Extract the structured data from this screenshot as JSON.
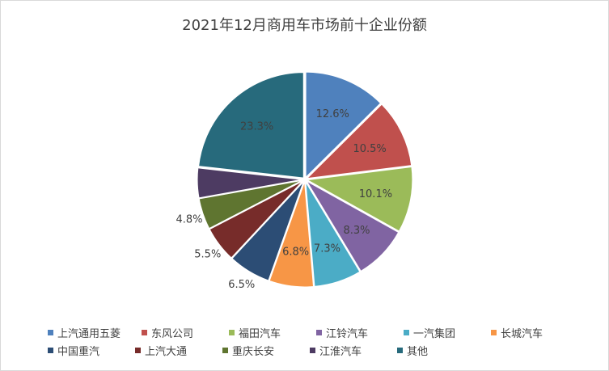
{
  "chart_data": {
    "type": "pie",
    "title": "2021年12月商用车市场前十企业份额",
    "categories": [
      "上汽通用五菱",
      "东风公司",
      "福田汽车",
      "江铃汽车",
      "一汽集团",
      "长城汽车",
      "中国重汽",
      "上汽大通",
      "重庆长安",
      "江淮汽车",
      "其他"
    ],
    "values": [
      12.6,
      10.5,
      10.1,
      8.3,
      7.3,
      6.8,
      6.5,
      5.5,
      4.8,
      4.6,
      23.3
    ],
    "labels": [
      "12.6%",
      "10.5%",
      "10.1%",
      "8.3%",
      "7.3%",
      "6.8%",
      "6.5%",
      "5.5%",
      "4.8%",
      "",
      "23.3%"
    ],
    "colors": [
      "#4f81bd",
      "#c0504d",
      "#9bbb59",
      "#8064a2",
      "#4bacc6",
      "#f79646",
      "#2c4d75",
      "#772c2a",
      "#5f7530",
      "#4d3b62",
      "#276a7c"
    ],
    "legend_position": "bottom"
  }
}
